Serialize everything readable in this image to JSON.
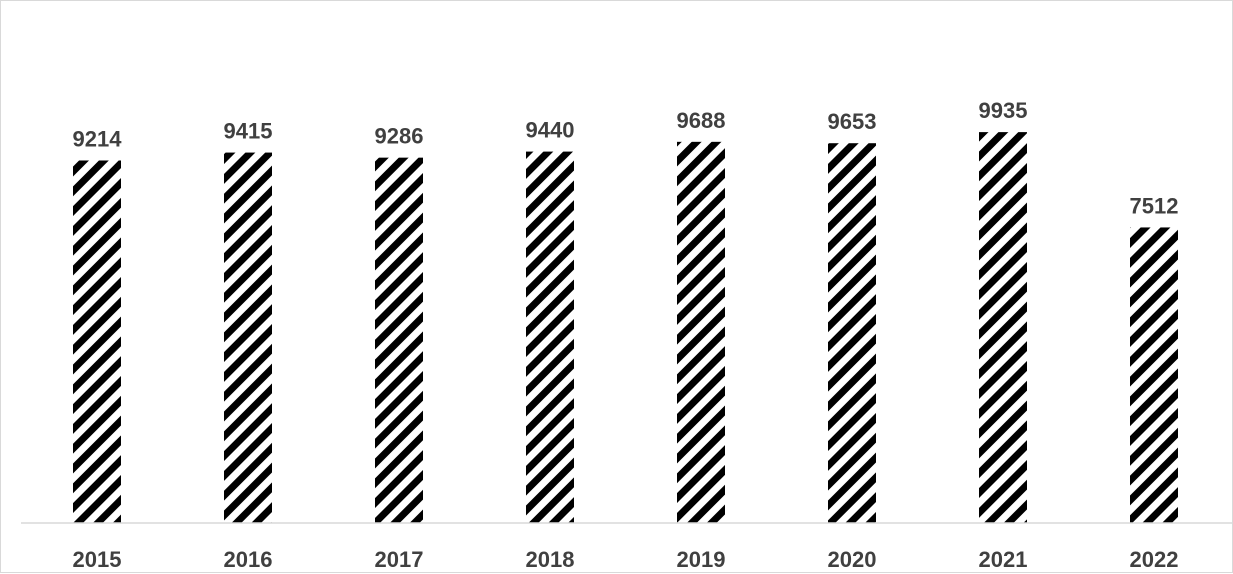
{
  "chart_data": {
    "type": "bar",
    "categories": [
      "2015",
      "2016",
      "2017",
      "2018",
      "2019",
      "2020",
      "2021",
      "2022"
    ],
    "values": [
      9214,
      9415,
      9286,
      9440,
      9688,
      9653,
      9935,
      7512
    ],
    "title": "",
    "xlabel": "",
    "ylabel": "",
    "ylim": [
      0,
      12200
    ],
    "grid": false,
    "legend": "none",
    "data_labels": true,
    "bar_fill": "diagonal-hatch",
    "colors": {
      "hatch": "#000000",
      "background": "#ffffff",
      "label": "#404040",
      "axis": "#d9d9d9"
    }
  }
}
